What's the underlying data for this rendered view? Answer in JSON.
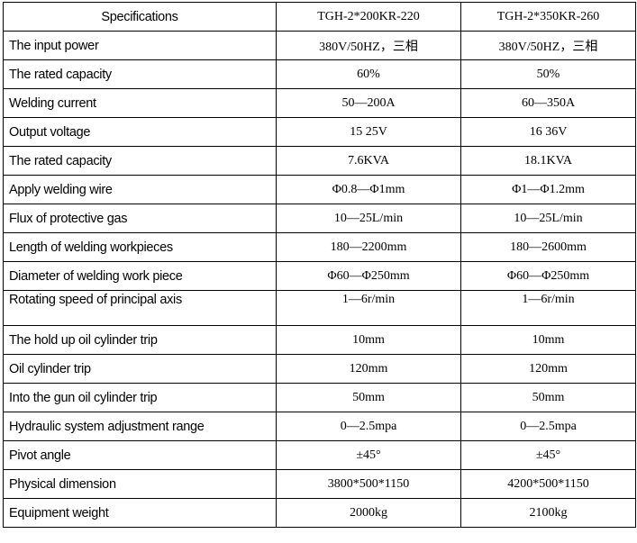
{
  "header": {
    "spec": "Specifications",
    "model_a": "TGH-2*200KR-220",
    "model_b": "TGH-2*350KR-260"
  },
  "rows": [
    {
      "spec": "The input power",
      "a": "380V/50HZ，三相",
      "b": "380V/50HZ，三相"
    },
    {
      "spec": "The rated capacity",
      "a": "60%",
      "b": "50%"
    },
    {
      "spec": "Welding current",
      "a": "50—200A",
      "b": "60—350A"
    },
    {
      "spec": "Output voltage",
      "a": "15   25V",
      "b": "16   36V"
    },
    {
      "spec": "The rated capacity",
      "a": "7.6KVA",
      "b": "18.1KVA"
    },
    {
      "spec": "Apply welding wire",
      "a": "Φ0.8—Φ1mm",
      "b": "Φ1—Φ1.2mm"
    },
    {
      "spec": "Flux of protective gas",
      "a": "10—25L/min",
      "b": "10—25L/min"
    },
    {
      "spec": "Length of welding workpieces",
      "a": "180—2200mm",
      "b": "180—2600mm"
    },
    {
      "spec": "Diameter of welding work piece",
      "a": "Φ60—Φ250mm",
      "b": "Φ60—Φ250mm"
    },
    {
      "spec": "Rotating speed of principal axis",
      "a": "1—6r/min",
      "b": "1—6r/min"
    },
    {
      "spec": "The hold up oil cylinder trip",
      "a": "10mm",
      "b": "10mm"
    },
    {
      "spec": "Oil cylinder trip",
      "a": "120mm",
      "b": "120mm"
    },
    {
      "spec": "Into the gun oil cylinder trip",
      "a": "50mm",
      "b": "50mm"
    },
    {
      "spec": "Hydraulic system adjustment range",
      "a": "0—2.5mpa",
      "b": "0—2.5mpa"
    },
    {
      "spec": "Pivot angle",
      "a": "±45°",
      "b": "±45°"
    },
    {
      "spec": "Physical dimension",
      "a": "3800*500*1150",
      "b": "4200*500*1150"
    },
    {
      "spec": "Equipment weight",
      "a": "2000kg",
      "b": "2100kg"
    }
  ]
}
